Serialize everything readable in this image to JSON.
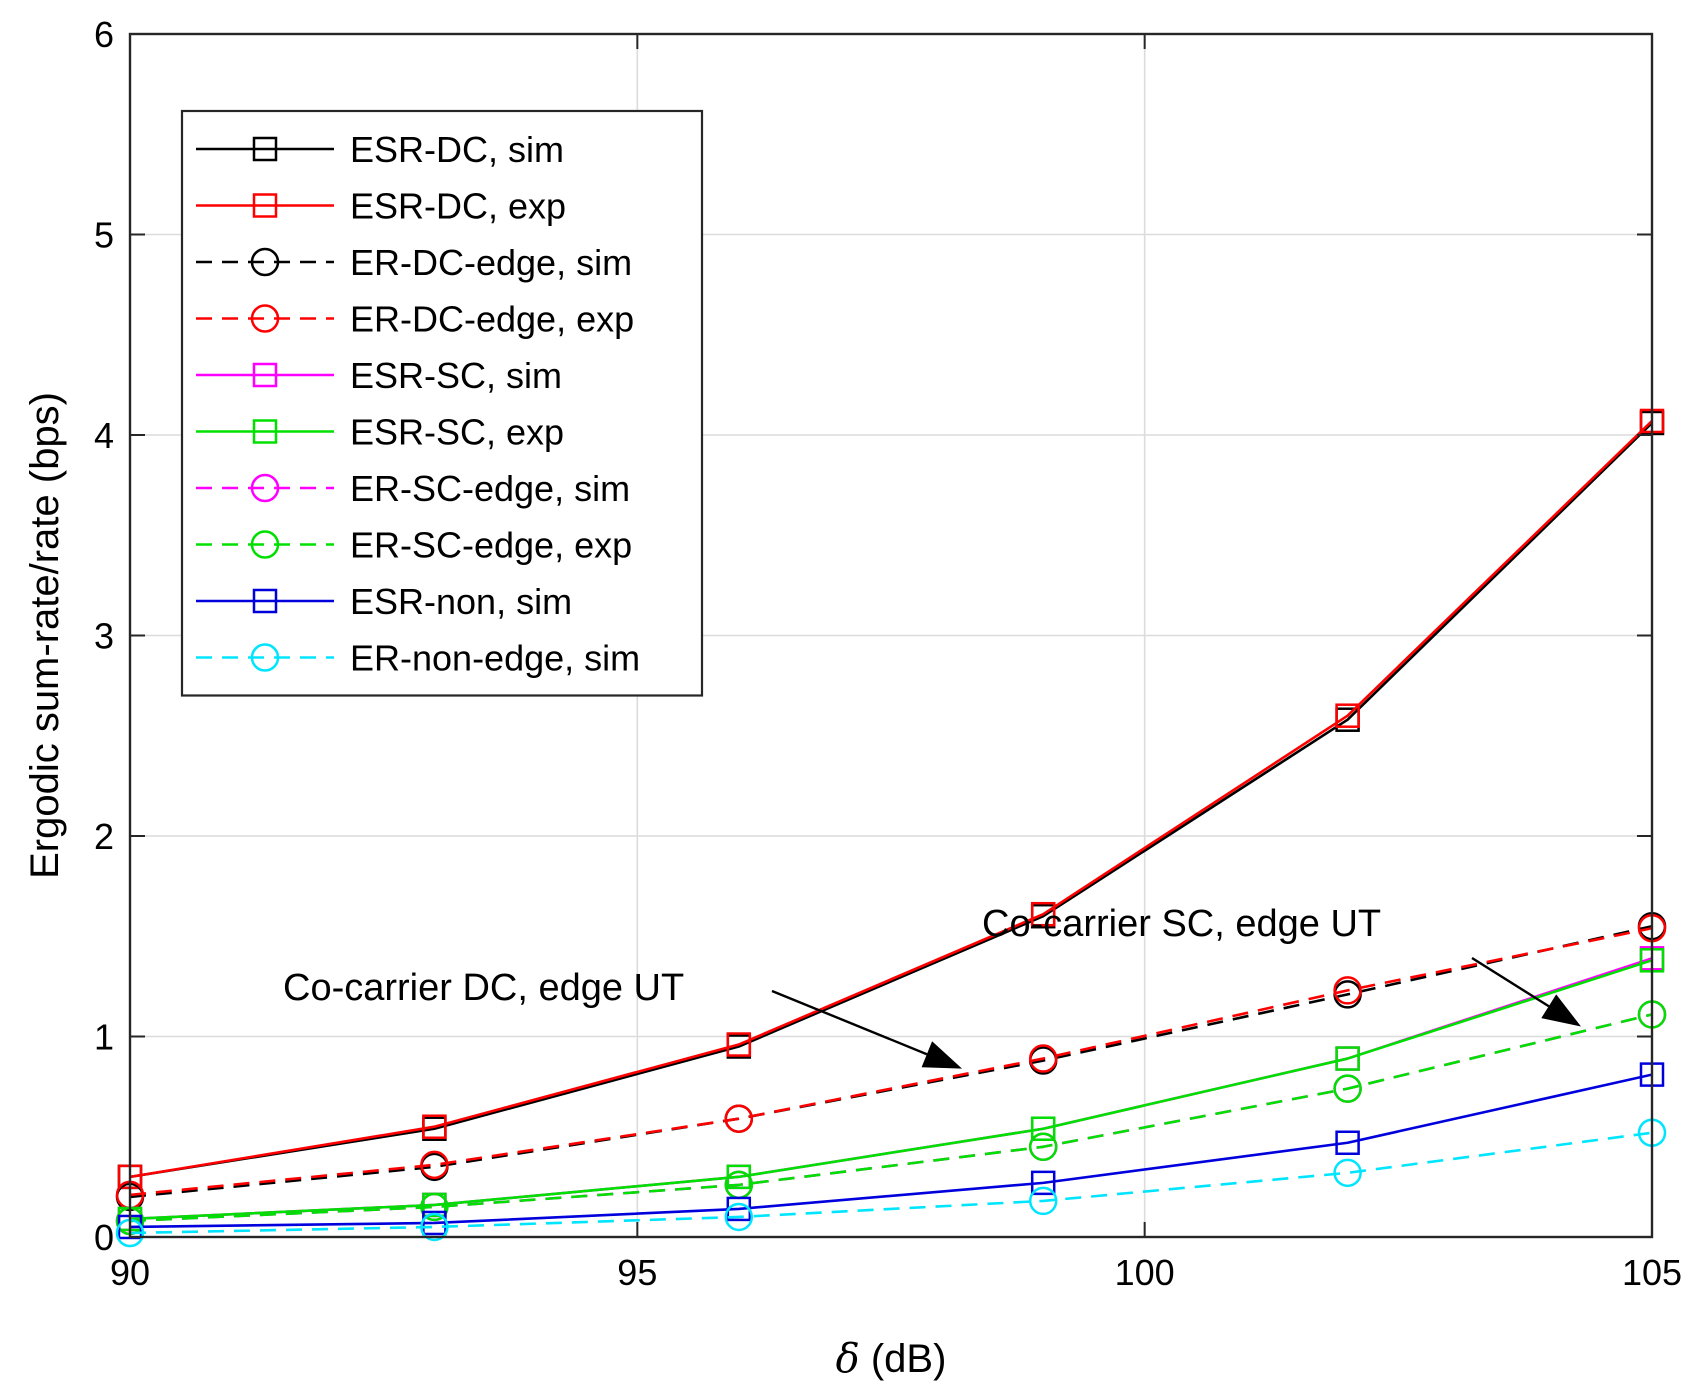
{
  "chart_data": {
    "type": "line",
    "title": "",
    "xlabel_symbol": "δ",
    "xlabel_unit": " (dB)",
    "ylabel": "Ergodic sum-rate/rate (bps)",
    "xlim": [
      90,
      105
    ],
    "ylim": [
      0,
      6
    ],
    "xticks": [
      90,
      95,
      100,
      105
    ],
    "yticks": [
      0,
      1,
      2,
      3,
      4,
      5,
      6
    ],
    "grid": true,
    "legend_position": "top-left",
    "x": [
      90,
      93,
      96,
      99,
      102,
      105
    ],
    "series": [
      {
        "name": "ESR-DC, sim",
        "color": "#000000",
        "dash": "solid",
        "marker": "square",
        "values": [
          0.3,
          0.54,
          0.95,
          1.6,
          2.58,
          4.06
        ]
      },
      {
        "name": "ESR-DC, exp",
        "color": "#ff0000",
        "dash": "solid",
        "marker": "square",
        "values": [
          0.3,
          0.55,
          0.96,
          1.61,
          2.6,
          4.07
        ]
      },
      {
        "name": "ER-DC-edge, sim",
        "color": "#000000",
        "dash": "dashed",
        "marker": "circle",
        "values": [
          0.2,
          0.35,
          0.59,
          0.88,
          1.21,
          1.55
        ]
      },
      {
        "name": "ER-DC-edge, exp",
        "color": "#ff0000",
        "dash": "dashed",
        "marker": "circle",
        "values": [
          0.21,
          0.36,
          0.59,
          0.89,
          1.23,
          1.54
        ]
      },
      {
        "name": "ESR-SC, sim",
        "color": "#ff00ff",
        "dash": "solid",
        "marker": "square",
        "values": [
          0.09,
          0.16,
          0.3,
          0.54,
          0.89,
          1.39
        ]
      },
      {
        "name": "ESR-SC, exp",
        "color": "#00e000",
        "dash": "solid",
        "marker": "square",
        "values": [
          0.09,
          0.16,
          0.3,
          0.54,
          0.89,
          1.38
        ]
      },
      {
        "name": "ER-SC-edge, sim",
        "color": "#ff00ff",
        "dash": "dashed",
        "marker": "circle",
        "values": [
          0.08,
          0.15,
          0.26,
          0.45,
          0.74,
          1.11
        ]
      },
      {
        "name": "ER-SC-edge, exp",
        "color": "#00e000",
        "dash": "dashed",
        "marker": "circle",
        "values": [
          0.08,
          0.15,
          0.26,
          0.45,
          0.74,
          1.11
        ]
      },
      {
        "name": "ESR-non, sim",
        "color": "#0000dd",
        "dash": "solid",
        "marker": "square",
        "values": [
          0.05,
          0.07,
          0.14,
          0.27,
          0.47,
          0.81
        ]
      },
      {
        "name": "ER-non-edge, sim",
        "color": "#00e5ff",
        "dash": "dashed",
        "marker": "circle",
        "values": [
          0.02,
          0.05,
          0.1,
          0.18,
          0.32,
          0.52
        ]
      }
    ],
    "annotations": [
      {
        "text": "Co-carrier DC, edge UT",
        "target": [
          98.2,
          0.84
        ]
      },
      {
        "text": "Co-carrier SC, edge UT",
        "target": [
          104.3,
          1.05
        ]
      }
    ]
  }
}
